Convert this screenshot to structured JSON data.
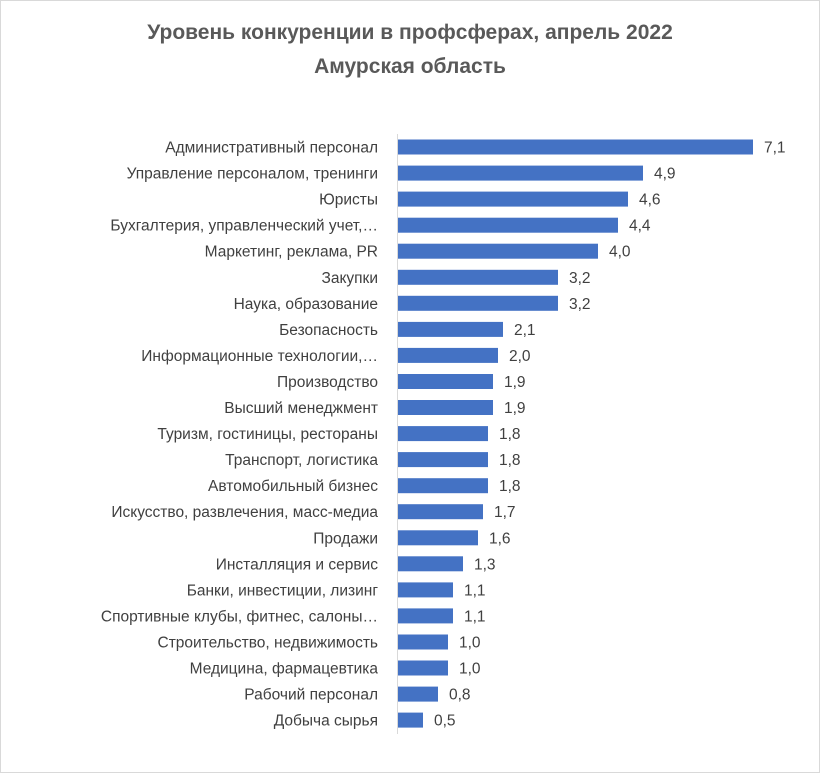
{
  "chart_data": {
    "type": "bar",
    "orientation": "horizontal",
    "title": "Уровень конкуренции в профсферах, апрель 2022",
    "subtitle": "Амурская область",
    "categories": [
      "Административный персонал",
      "Управление персоналом, тренинги",
      "Юристы",
      "Бухгалтерия, управленческий учет,…",
      "Маркетинг, реклама, PR",
      "Закупки",
      "Наука, образование",
      "Безопасность",
      "Информационные технологии,…",
      "Производство",
      "Высший менеджмент",
      "Туризм, гостиницы, рестораны",
      "Транспорт, логистика",
      "Автомобильный бизнес",
      "Искусство, развлечения, масс-медиа",
      "Продажи",
      "Инсталляция и сервис",
      "Банки, инвестиции,  лизинг",
      "Спортивные клубы, фитнес, салоны…",
      "Строительство, недвижимость",
      "Медицина, фармацевтика",
      "Рабочий персонал",
      "Добыча сырья"
    ],
    "values": [
      7.1,
      4.9,
      4.6,
      4.4,
      4.0,
      3.2,
      3.2,
      2.1,
      2.0,
      1.9,
      1.9,
      1.8,
      1.8,
      1.8,
      1.7,
      1.6,
      1.3,
      1.1,
      1.1,
      1.0,
      1.0,
      0.8,
      0.5
    ],
    "value_labels": [
      "7,1",
      "4,9",
      "4,6",
      "4,4",
      "4,0",
      "3,2",
      "3,2",
      "2,1",
      "2,0",
      "1,9",
      "1,9",
      "1,8",
      "1,8",
      "1,8",
      "1,7",
      "1,6",
      "1,3",
      "1,1",
      "1,1",
      "1,0",
      "1,0",
      "0,8",
      "0,5"
    ],
    "xlim": [
      0,
      7.1
    ],
    "grid": false,
    "legend": "none",
    "bar_color": "#4472c4"
  }
}
